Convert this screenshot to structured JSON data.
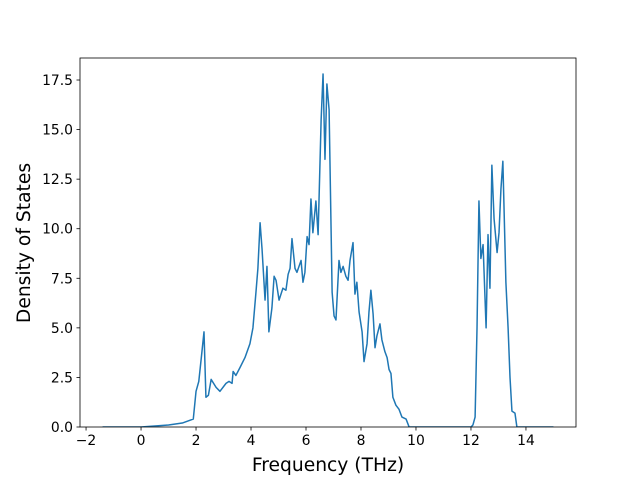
{
  "chart_data": {
    "type": "line",
    "xlabel": "Frequency (THz)",
    "ylabel": "Density of States",
    "xlim": [
      -2.22,
      15.82
    ],
    "ylim": [
      0,
      18.61
    ],
    "xticks": [
      {
        "value": -2,
        "label": "−2"
      },
      0,
      2,
      4,
      6,
      8,
      10,
      12,
      14
    ],
    "yticks": [
      {
        "value": 0,
        "label": "0.0"
      },
      2.5,
      {
        "value": 5,
        "label": "5.0"
      },
      7.5,
      {
        "value": 10,
        "label": "10.0"
      },
      12.5,
      {
        "value": 15,
        "label": "15.0"
      },
      17.5
    ],
    "series": [
      {
        "color": "#1f77b4",
        "x": [
          -1.4,
          0,
          1,
          1.5,
          1.9,
          2.0,
          2.1,
          2.2,
          2.29,
          2.36,
          2.45,
          2.55,
          2.73,
          2.87,
          3.09,
          3.2,
          3.31,
          3.35,
          3.45,
          3.6,
          3.78,
          3.96,
          4.07,
          4.18,
          4.25,
          4.33,
          4.4,
          4.51,
          4.58,
          4.65,
          4.76,
          4.84,
          4.91,
          5.02,
          5.16,
          5.27,
          5.35,
          5.42,
          5.49,
          5.6,
          5.67,
          5.82,
          5.89,
          5.96,
          6.04,
          6.11,
          6.18,
          6.25,
          6.36,
          6.44,
          6.55,
          6.62,
          6.69,
          6.76,
          6.84,
          6.95,
          7.02,
          7.09,
          7.2,
          7.27,
          7.35,
          7.45,
          7.53,
          7.6,
          7.71,
          7.78,
          7.85,
          7.93,
          8.04,
          8.11,
          8.22,
          8.29,
          8.36,
          8.44,
          8.51,
          8.58,
          8.69,
          8.76,
          8.87,
          8.95,
          9.02,
          9.09,
          9.16,
          9.27,
          9.38,
          9.49,
          9.64,
          9.75,
          12.0,
          12.07,
          12.15,
          12.22,
          12.29,
          12.36,
          12.44,
          12.55,
          12.62,
          12.69,
          12.76,
          12.84,
          12.95,
          13.02,
          13.09,
          13.16,
          13.27,
          13.35,
          13.42,
          13.49,
          13.6,
          13.67,
          15.0
        ],
        "values": [
          0,
          0,
          0.1,
          0.2,
          0.4,
          1.8,
          2.3,
          3.6,
          4.8,
          1.5,
          1.6,
          2.4,
          2.0,
          1.8,
          2.2,
          2.3,
          2.2,
          2.8,
          2.6,
          3.0,
          3.5,
          4.2,
          5.0,
          6.8,
          8.0,
          10.3,
          9.0,
          6.4,
          8.1,
          4.8,
          6.0,
          7.6,
          7.4,
          6.4,
          7.0,
          6.9,
          7.7,
          8.0,
          9.5,
          8.0,
          7.8,
          8.4,
          7.3,
          7.8,
          9.6,
          9.2,
          11.5,
          9.8,
          11.4,
          9.7,
          15.5,
          17.8,
          13.5,
          17.3,
          16.0,
          6.8,
          5.6,
          5.4,
          8.4,
          7.8,
          8.1,
          7.6,
          7.4,
          8.4,
          9.3,
          6.7,
          7.3,
          5.8,
          4.8,
          3.3,
          4.2,
          5.8,
          6.9,
          5.7,
          4.0,
          4.6,
          5.2,
          4.4,
          3.8,
          3.5,
          2.9,
          2.7,
          1.5,
          1.1,
          0.9,
          0.5,
          0.4,
          0,
          0,
          0.1,
          0.5,
          5.0,
          11.4,
          8.5,
          9.2,
          5.0,
          9.7,
          7.0,
          13.2,
          10.5,
          8.8,
          9.8,
          12.0,
          13.4,
          7.3,
          5.0,
          2.5,
          0.8,
          0.7,
          0,
          0
        ]
      }
    ]
  }
}
